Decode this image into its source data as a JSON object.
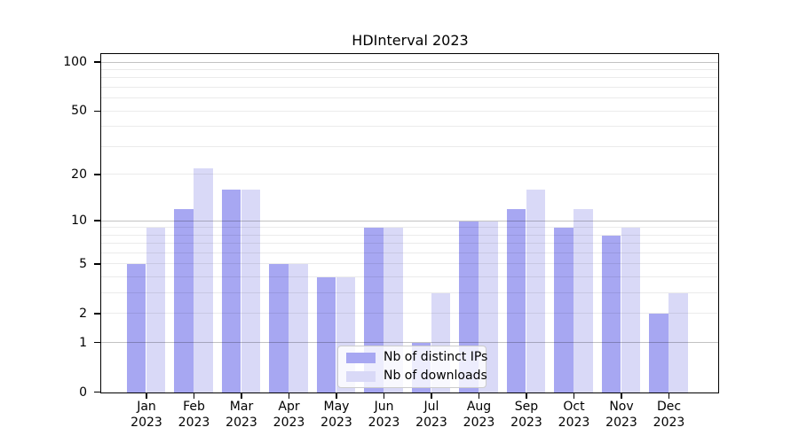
{
  "chart_data": {
    "type": "bar",
    "title": "HDInterval 2023",
    "categories": [
      "Jan 2023",
      "Feb 2023",
      "Mar 2023",
      "Apr 2023",
      "May 2023",
      "Jun 2023",
      "Jul 2023",
      "Aug 2023",
      "Sep 2023",
      "Oct 2023",
      "Nov 2023",
      "Dec 2023"
    ],
    "series": [
      {
        "name": "Nb of distinct IPs",
        "color": "#a7a7f2",
        "values": [
          5,
          12,
          16,
          5,
          4,
          9,
          1,
          10,
          12,
          9,
          8,
          2
        ]
      },
      {
        "name": "Nb of downloads",
        "color": "#d9d9f7",
        "values": [
          9,
          22,
          16,
          5,
          4,
          9,
          3,
          10,
          16,
          12,
          9,
          3
        ]
      }
    ],
    "xlabel": "",
    "ylabel": "",
    "yscale": "log1p",
    "ylim": [
      0,
      113
    ],
    "ytick_labels": [
      "0",
      "1",
      "2",
      "5",
      "10",
      "20",
      "50",
      "100"
    ],
    "ytick_values": [
      0,
      1,
      2,
      5,
      10,
      20,
      50,
      100
    ],
    "grid": "horizontal, drawn over bars",
    "grid_major_values": [
      1,
      10,
      100
    ],
    "grid_minor_values": [
      2,
      3,
      4,
      5,
      6,
      7,
      8,
      9,
      20,
      30,
      40,
      50,
      60,
      70,
      80,
      90
    ],
    "legend_position": "lower center"
  },
  "colors": {
    "series_ips": "#a7a7f2",
    "series_downloads": "#d9d9f7",
    "grid_major": "rgba(0,0,0,0.24)",
    "grid_minor": "rgba(0,0,0,0.08)",
    "spine": "#000000",
    "legend_border": "#cccccc",
    "legend_background": "rgba(255,255,255,0.8)",
    "text": "#000000"
  }
}
